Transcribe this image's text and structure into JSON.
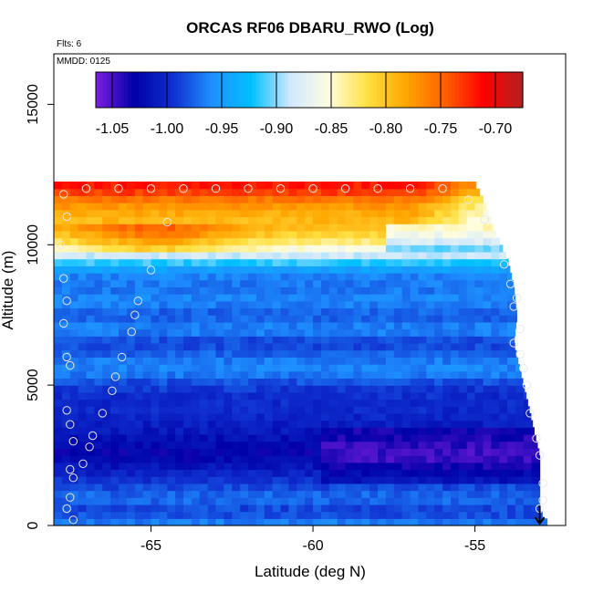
{
  "chart_data": {
    "type": "heatmap",
    "title": "ORCAS RF06 DBARU_RWO (Log)",
    "subtitle": "Flts: 6",
    "annotation": "MMDD: 0125",
    "xlabel": "Latitude (deg N)",
    "ylabel": "Altitude (m)",
    "xlim": [
      -68,
      -52.2
    ],
    "ylim": [
      0,
      16800
    ],
    "x_ticks": [
      -65,
      -60,
      -55
    ],
    "x_tick_labels": [
      "-65",
      "-60",
      "-55"
    ],
    "y_ticks": [
      0,
      5000,
      10000,
      15000
    ],
    "y_tick_labels": [
      "0",
      "5000",
      "10000",
      "15000"
    ],
    "colorbar": {
      "min": -1.065,
      "max": -0.675,
      "ticks": [
        -1.05,
        -1.0,
        -0.95,
        -0.9,
        -0.85,
        -0.8,
        -0.75,
        -0.7
      ],
      "tick_labels": [
        "-1.05",
        "-1.00",
        "-0.95",
        "-0.90",
        "-0.85",
        "-0.80",
        "-0.75",
        "-0.70"
      ],
      "colors": [
        "#7b1fe0",
        "#0000a8",
        "#1030d0",
        "#1e90ff",
        "#00bfff",
        "#cfe8ff",
        "#fffde0",
        "#ffe040",
        "#ffa500",
        "#ff6000",
        "#ff0000",
        "#b22222"
      ]
    },
    "grid": false,
    "legend": "colorbar-top-inside",
    "right_edge": [
      {
        "alt": 12200,
        "lat": -55.0
      },
      {
        "alt": 11500,
        "lat": -54.7
      },
      {
        "alt": 10500,
        "lat": -54.4
      },
      {
        "alt": 9500,
        "lat": -54.0
      },
      {
        "alt": 8500,
        "lat": -53.8
      },
      {
        "alt": 7500,
        "lat": -53.7
      },
      {
        "alt": 6500,
        "lat": -53.8
      },
      {
        "alt": 5500,
        "lat": -53.6
      },
      {
        "alt": 4500,
        "lat": -53.4
      },
      {
        "alt": 3500,
        "lat": -53.2
      },
      {
        "alt": 2500,
        "lat": -53.0
      },
      {
        "alt": 1500,
        "lat": -53.0
      },
      {
        "alt": 500,
        "lat": -53.0
      },
      {
        "alt": 0,
        "lat": -52.7
      }
    ],
    "profile": [
      {
        "alt": 12000,
        "value": -0.72
      },
      {
        "alt": 11500,
        "value": -0.77
      },
      {
        "alt": 11000,
        "value": -0.79
      },
      {
        "alt": 10500,
        "value": -0.8
      },
      {
        "alt": 10000,
        "value": -0.84
      },
      {
        "alt": 9500,
        "value": -0.9
      },
      {
        "alt": 9000,
        "value": -0.96
      },
      {
        "alt": 8500,
        "value": -0.97
      },
      {
        "alt": 8000,
        "value": -0.96
      },
      {
        "alt": 7500,
        "value": -0.98
      },
      {
        "alt": 7000,
        "value": -0.96
      },
      {
        "alt": 6500,
        "value": -0.99
      },
      {
        "alt": 6000,
        "value": -0.97
      },
      {
        "alt": 5500,
        "value": -0.96
      },
      {
        "alt": 5000,
        "value": -0.99
      },
      {
        "alt": 4500,
        "value": -1.0
      },
      {
        "alt": 4000,
        "value": -1.0
      },
      {
        "alt": 3500,
        "value": -1.01
      },
      {
        "alt": 3000,
        "value": -1.02
      },
      {
        "alt": 2500,
        "value": -1.03
      },
      {
        "alt": 2000,
        "value": -1.01
      },
      {
        "alt": 1500,
        "value": -0.99
      },
      {
        "alt": 1000,
        "value": -0.97
      },
      {
        "alt": 500,
        "value": -0.99
      },
      {
        "alt": 0,
        "value": -0.96
      }
    ],
    "points": [
      {
        "lat": -67.7,
        "alt": 11800
      },
      {
        "lat": -67.6,
        "alt": 11000
      },
      {
        "lat": -67.8,
        "alt": 10000
      },
      {
        "lat": -67.7,
        "alt": 8800
      },
      {
        "lat": -67.6,
        "alt": 8000
      },
      {
        "lat": -67.7,
        "alt": 7200
      },
      {
        "lat": -67.6,
        "alt": 6000
      },
      {
        "lat": -67.5,
        "alt": 5700
      },
      {
        "lat": -67.6,
        "alt": 4100
      },
      {
        "lat": -67.5,
        "alt": 3600
      },
      {
        "lat": -67.4,
        "alt": 3000
      },
      {
        "lat": -67.5,
        "alt": 2000
      },
      {
        "lat": -67.4,
        "alt": 1700
      },
      {
        "lat": -67.5,
        "alt": 1000
      },
      {
        "lat": -67.6,
        "alt": 600
      },
      {
        "lat": -67.4,
        "alt": 200
      },
      {
        "lat": -67.1,
        "alt": 2200
      },
      {
        "lat": -66.9,
        "alt": 2800
      },
      {
        "lat": -66.8,
        "alt": 3200
      },
      {
        "lat": -66.5,
        "alt": 4000
      },
      {
        "lat": -66.2,
        "alt": 4800
      },
      {
        "lat": -66.1,
        "alt": 5300
      },
      {
        "lat": -65.9,
        "alt": 6000
      },
      {
        "lat": -65.6,
        "alt": 6900
      },
      {
        "lat": -65.5,
        "alt": 7500
      },
      {
        "lat": -65.4,
        "alt": 8000
      },
      {
        "lat": -65.0,
        "alt": 9100
      },
      {
        "lat": -64.5,
        "alt": 10800
      },
      {
        "lat": -67.0,
        "alt": 12000
      },
      {
        "lat": -66.0,
        "alt": 12000
      },
      {
        "lat": -65.0,
        "alt": 12000
      },
      {
        "lat": -64.0,
        "alt": 12000
      },
      {
        "lat": -63.0,
        "alt": 12000
      },
      {
        "lat": -62.0,
        "alt": 12000
      },
      {
        "lat": -61.0,
        "alt": 12000
      },
      {
        "lat": -60.0,
        "alt": 12000
      },
      {
        "lat": -59.0,
        "alt": 12000
      },
      {
        "lat": -58.0,
        "alt": 12000
      },
      {
        "lat": -57.0,
        "alt": 12000
      },
      {
        "lat": -56.0,
        "alt": 12000
      },
      {
        "lat": -55.2,
        "alt": 11600
      },
      {
        "lat": -54.7,
        "alt": 10900
      },
      {
        "lat": -54.5,
        "alt": 10100
      },
      {
        "lat": -54.1,
        "alt": 9300
      },
      {
        "lat": -53.9,
        "alt": 8600
      },
      {
        "lat": -53.7,
        "alt": 8100
      },
      {
        "lat": -53.8,
        "alt": 7800
      },
      {
        "lat": -53.6,
        "alt": 7000
      },
      {
        "lat": -53.8,
        "alt": 6500
      },
      {
        "lat": -53.6,
        "alt": 6100
      },
      {
        "lat": -53.5,
        "alt": 5600
      },
      {
        "lat": -53.4,
        "alt": 5000
      },
      {
        "lat": -53.3,
        "alt": 4000
      },
      {
        "lat": -53.1,
        "alt": 3100
      },
      {
        "lat": -53.0,
        "alt": 2500
      },
      {
        "lat": -52.9,
        "alt": 1500
      },
      {
        "lat": -52.9,
        "alt": 900
      },
      {
        "lat": -53.0,
        "alt": 600
      }
    ]
  }
}
